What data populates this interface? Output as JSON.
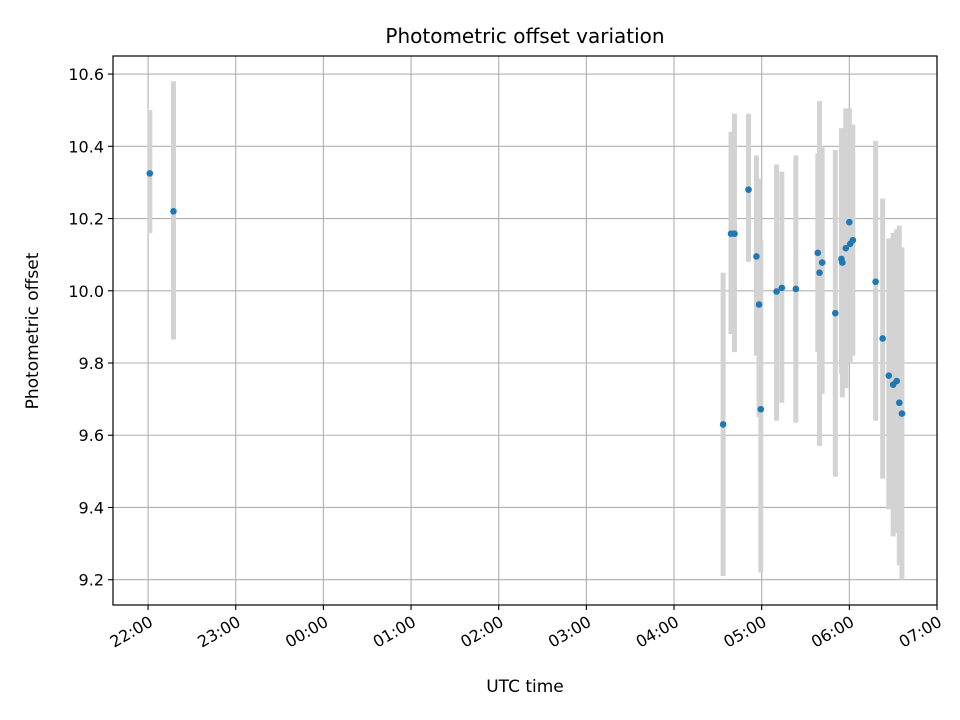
{
  "chart_data": {
    "type": "scatter",
    "title": "Photometric offset variation",
    "xlabel": "UTC time",
    "ylabel": "Photometric offset",
    "x_unit": "hours",
    "xlim": [
      21.6,
      31.0
    ],
    "ylim": [
      9.13,
      10.65
    ],
    "grid": true,
    "x_ticks": [
      {
        "value": 22,
        "label": "22:00"
      },
      {
        "value": 23,
        "label": "23:00"
      },
      {
        "value": 24,
        "label": "00:00"
      },
      {
        "value": 25,
        "label": "01:00"
      },
      {
        "value": 26,
        "label": "02:00"
      },
      {
        "value": 27,
        "label": "03:00"
      },
      {
        "value": 28,
        "label": "04:00"
      },
      {
        "value": 29,
        "label": "05:00"
      },
      {
        "value": 30,
        "label": "06:00"
      },
      {
        "value": 31,
        "label": "07:00"
      }
    ],
    "y_ticks": [
      {
        "value": 9.2,
        "label": "9.2"
      },
      {
        "value": 9.4,
        "label": "9.4"
      },
      {
        "value": 9.6,
        "label": "9.6"
      },
      {
        "value": 9.8,
        "label": "9.8"
      },
      {
        "value": 10.0,
        "label": "10.0"
      },
      {
        "value": 10.2,
        "label": "10.2"
      },
      {
        "value": 10.4,
        "label": "10.4"
      },
      {
        "value": 10.6,
        "label": "10.6"
      }
    ],
    "point_color": "#1f77b4",
    "errorbar_color": "#d3d3d3",
    "points": [
      {
        "x": 22.02,
        "y": 10.325,
        "lo": 10.16,
        "hi": 10.5
      },
      {
        "x": 22.29,
        "y": 10.22,
        "lo": 9.865,
        "hi": 10.58
      },
      {
        "x": 28.56,
        "y": 9.63,
        "lo": 9.21,
        "hi": 10.05
      },
      {
        "x": 28.65,
        "y": 10.158,
        "lo": 9.88,
        "hi": 10.44
      },
      {
        "x": 28.69,
        "y": 10.158,
        "lo": 9.83,
        "hi": 10.49
      },
      {
        "x": 28.85,
        "y": 10.28,
        "lo": 10.08,
        "hi": 10.49
      },
      {
        "x": 28.94,
        "y": 10.095,
        "lo": 9.82,
        "hi": 10.375
      },
      {
        "x": 28.97,
        "y": 9.962,
        "lo": 9.65,
        "hi": 10.31
      },
      {
        "x": 28.99,
        "y": 9.672,
        "lo": 9.22,
        "hi": 10.14
      },
      {
        "x": 29.17,
        "y": 9.998,
        "lo": 9.64,
        "hi": 10.35
      },
      {
        "x": 29.23,
        "y": 10.008,
        "lo": 9.69,
        "hi": 10.33
      },
      {
        "x": 29.39,
        "y": 10.005,
        "lo": 9.635,
        "hi": 10.375
      },
      {
        "x": 29.64,
        "y": 10.105,
        "lo": 9.83,
        "hi": 10.38
      },
      {
        "x": 29.66,
        "y": 10.05,
        "lo": 9.57,
        "hi": 10.525
      },
      {
        "x": 29.69,
        "y": 10.078,
        "lo": 9.715,
        "hi": 10.4
      },
      {
        "x": 29.84,
        "y": 9.938,
        "lo": 9.485,
        "hi": 10.39
      },
      {
        "x": 29.91,
        "y": 10.088,
        "lo": 9.77,
        "hi": 10.45
      },
      {
        "x": 29.92,
        "y": 10.078,
        "lo": 9.705,
        "hi": 10.45
      },
      {
        "x": 29.96,
        "y": 10.118,
        "lo": 9.73,
        "hi": 10.505
      },
      {
        "x": 30.0,
        "y": 10.19,
        "lo": 9.855,
        "hi": 10.505
      },
      {
        "x": 30.01,
        "y": 10.13,
        "lo": 9.8,
        "hi": 10.46
      },
      {
        "x": 30.04,
        "y": 10.14,
        "lo": 9.82,
        "hi": 10.46
      },
      {
        "x": 30.3,
        "y": 10.025,
        "lo": 9.64,
        "hi": 10.415
      },
      {
        "x": 30.38,
        "y": 9.868,
        "lo": 9.48,
        "hi": 10.255
      },
      {
        "x": 30.45,
        "y": 9.765,
        "lo": 9.395,
        "hi": 10.145
      },
      {
        "x": 30.5,
        "y": 9.74,
        "lo": 9.32,
        "hi": 10.16
      },
      {
        "x": 30.54,
        "y": 9.75,
        "lo": 9.33,
        "hi": 10.17
      },
      {
        "x": 30.57,
        "y": 9.69,
        "lo": 9.24,
        "hi": 10.18
      },
      {
        "x": 30.6,
        "y": 9.66,
        "lo": 9.2,
        "hi": 10.12
      }
    ]
  }
}
